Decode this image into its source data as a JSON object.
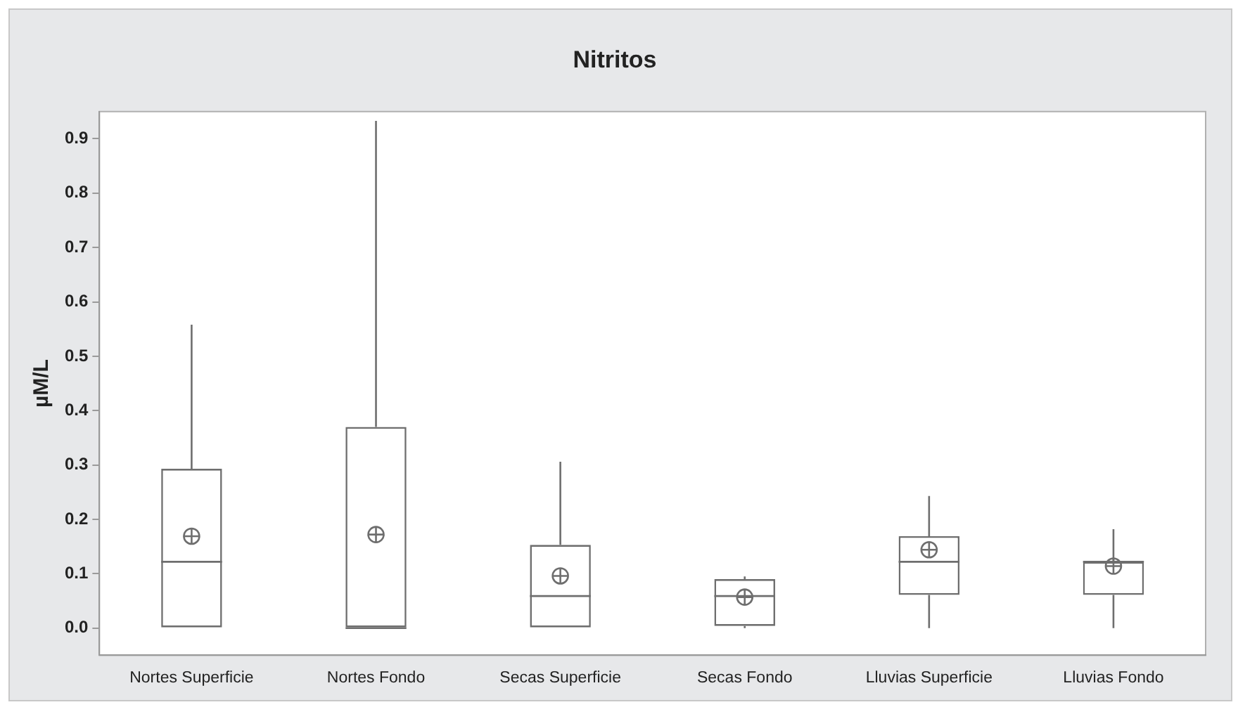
{
  "chart_data": {
    "type": "box",
    "title": "Nitritos",
    "ylabel": "µM/L",
    "categories": [
      "Nortes Superficie",
      "Nortes Fondo",
      "Secas Superficie",
      "Secas Fondo",
      "Lluvias Superficie",
      "Lluvias Fondo"
    ],
    "boxes": [
      {
        "low": 0,
        "q1": 0,
        "median": 0.122,
        "q3": 0.293,
        "high": 0.558,
        "mean": 0.169
      },
      {
        "low": 0,
        "q1": 0,
        "median": 0,
        "q3": 0.37,
        "high": 0.933,
        "mean": 0.172
      },
      {
        "low": 0,
        "q1": 0,
        "median": 0.059,
        "q3": 0.153,
        "high": 0.306,
        "mean": 0.096
      },
      {
        "low": 0,
        "q1": 0.004,
        "median": 0.059,
        "q3": 0.09,
        "high": 0.095,
        "mean": 0.057
      },
      {
        "low": 0,
        "q1": 0.061,
        "median": 0.122,
        "q3": 0.169,
        "high": 0.243,
        "mean": 0.144
      },
      {
        "low": 0,
        "q1": 0.061,
        "median": 0.122,
        "q3": 0.122,
        "high": 0.182,
        "mean": 0.114
      }
    ],
    "color": "#6e6e6e",
    "ylim": [
      -0.05,
      0.95
    ],
    "yticks": [
      {
        "value": 0,
        "label": "0.0"
      },
      {
        "value": 0.1,
        "label": "0.1"
      },
      {
        "value": 0.2,
        "label": "0.2"
      },
      {
        "value": 0.3,
        "label": "0.3"
      },
      {
        "value": 0.4,
        "label": "0.4"
      },
      {
        "value": 0.5,
        "label": "0.5"
      },
      {
        "value": 0.6,
        "label": "0.6"
      },
      {
        "value": 0.7,
        "label": "0.7"
      },
      {
        "value": 0.8,
        "label": "0.8"
      },
      {
        "value": 0.9,
        "label": "0.9"
      }
    ],
    "grid": false,
    "legend": false
  }
}
